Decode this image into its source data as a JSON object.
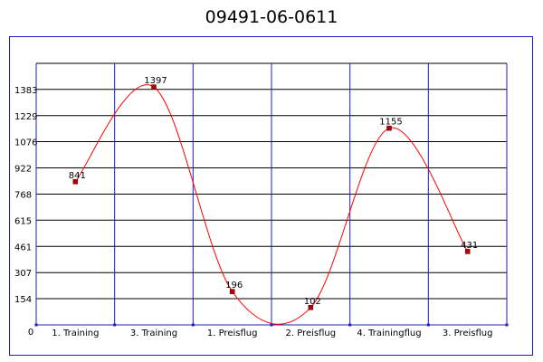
{
  "title": "09491-06-0611",
  "chart_data": {
    "type": "line",
    "title": "09491-06-0611",
    "xlabel": "",
    "ylabel": "",
    "categories": [
      "1. Training",
      "3. Training",
      "1. Preisflug",
      "2. Preisflug",
      "4. Trainingflug",
      "3. Preisflug"
    ],
    "series": [
      {
        "values": [
          841,
          1397,
          196,
          102,
          1155,
          431
        ]
      }
    ],
    "ylim": [
      0,
      1536
    ],
    "yticks": [
      0,
      154,
      307,
      461,
      615,
      768,
      922,
      1076,
      1229,
      1383
    ],
    "grid": true,
    "smooth": true,
    "colors": {
      "line": "#ff0000",
      "marker": "#b00000",
      "grid": "#1c1cc8",
      "frame": "#1c1cc8"
    }
  }
}
